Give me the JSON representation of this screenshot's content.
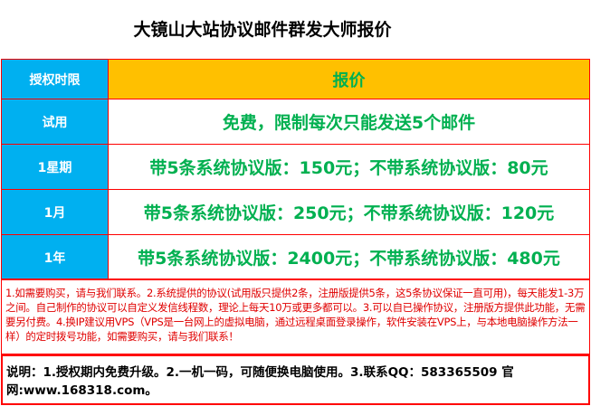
{
  "title": "大镜山大站协议邮件群发大师报价",
  "colors": {
    "header": "#ffc000",
    "key_cell": "#00b0f0",
    "price_text": "#00b050",
    "border": "#ff0000",
    "notes_text": "#e00000"
  },
  "table": {
    "header": {
      "period": "授权时限",
      "price": "报价"
    },
    "rows": [
      {
        "period": "试用",
        "price": "免费，限制每次只能发送5个邮件"
      },
      {
        "period": "1星期",
        "price": "带5条系统协议版：150元；不带系统协议版：80元"
      },
      {
        "period": "1月",
        "price": "带5条系统协议版：250元；不带系统协议版：120元"
      },
      {
        "period": "1年",
        "price": "带5条系统协议版：2400元；不带系统协议版：480元"
      }
    ]
  },
  "notes": "1.如需要购买，请与我们联系。2.系统提供的协议(试用版只提供2条，注册版提供5条，这5条协议保证一直可用)，每天能发1-3万之间。自己制作的协议可以自定义发信线程数，理论上每天10万或更多都可以。3.可以自已操作协议，注册版方提供此功能，无需要另付费。4.换IP建议用VPS（VPS是一台网上的虚拟电脑，通过远程桌面登录操作，软件安装在VPS上，与本地电脑操作方法一样）的定时拨号功能，如需要购买，请与我们联系！",
  "explanation": "说明：1.授权期内免费升级。2.一机一码，可随便换电脑使用。3.联系QQ：583365509 官网:www.168318.com。"
}
